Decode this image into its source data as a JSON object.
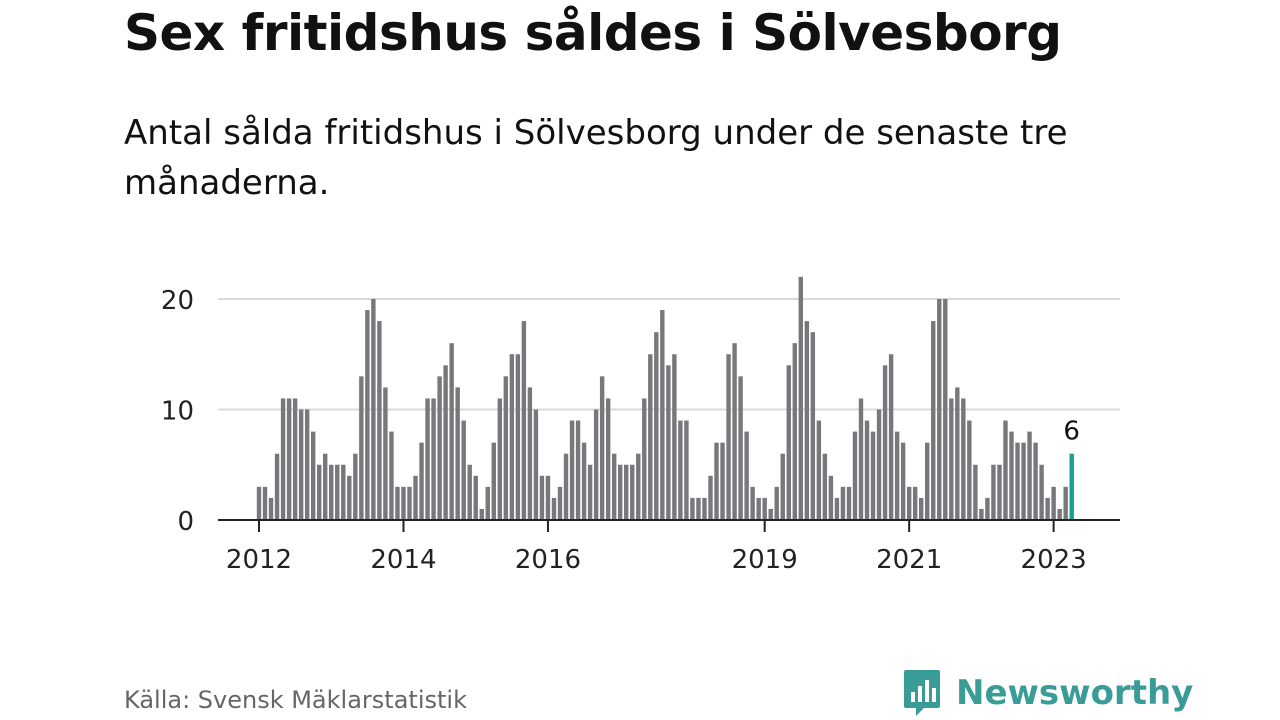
{
  "header": {
    "title": "Sex fritidshus såldes i Sölvesborg",
    "subtitle": "Antal sålda fritidshus i Sölvesborg under de senaste tre månaderna."
  },
  "footer": {
    "source": "Källa: Svensk Mäklarstatistik",
    "brand": "Newsworthy"
  },
  "colors": {
    "bar": "#78777c",
    "highlight": "#1a9e96",
    "grid": "#d9d9d9",
    "axis": "#222222",
    "brand": "#3a9c96"
  },
  "chart_data": {
    "type": "bar",
    "title": "",
    "xlabel": "",
    "ylabel": "",
    "ylim": [
      0,
      20
    ],
    "yticks": [
      0,
      10,
      20
    ],
    "grid": true,
    "x_tick_labels": [
      "2012",
      "2014",
      "2016",
      "2019",
      "2021",
      "2023"
    ],
    "x_tick_indices": [
      0,
      24,
      48,
      84,
      108,
      132
    ],
    "series": [
      {
        "values": [
          3,
          3,
          2,
          6,
          11,
          11,
          11,
          10,
          10,
          8,
          5,
          6,
          5,
          5,
          5,
          4,
          6,
          13,
          19,
          20,
          18,
          12,
          8,
          3,
          3,
          3,
          4,
          7,
          11,
          11,
          13,
          14,
          16,
          12,
          9,
          5,
          4,
          1,
          3,
          7,
          11,
          13,
          15,
          15,
          18,
          12,
          10,
          4,
          4,
          2,
          3,
          6,
          9,
          9,
          7,
          5,
          10,
          13,
          11,
          6,
          5,
          5,
          5,
          6,
          11,
          15,
          17,
          19,
          14,
          15,
          9,
          9,
          2,
          2,
          2,
          4,
          7,
          7,
          15,
          16,
          13,
          8,
          3,
          2,
          2,
          1,
          3,
          6,
          14,
          16,
          22,
          18,
          17,
          9,
          6,
          4,
          2,
          3,
          3,
          8,
          11,
          9,
          8,
          10,
          14,
          15,
          8,
          7,
          3,
          3,
          2,
          7,
          18,
          20,
          20,
          11,
          12,
          11,
          9,
          5,
          1,
          2,
          5,
          5,
          9,
          8,
          7,
          7,
          8,
          7,
          5,
          2,
          3,
          1,
          3,
          6
        ]
      }
    ],
    "highlight_index": 135,
    "annotation": "6"
  }
}
